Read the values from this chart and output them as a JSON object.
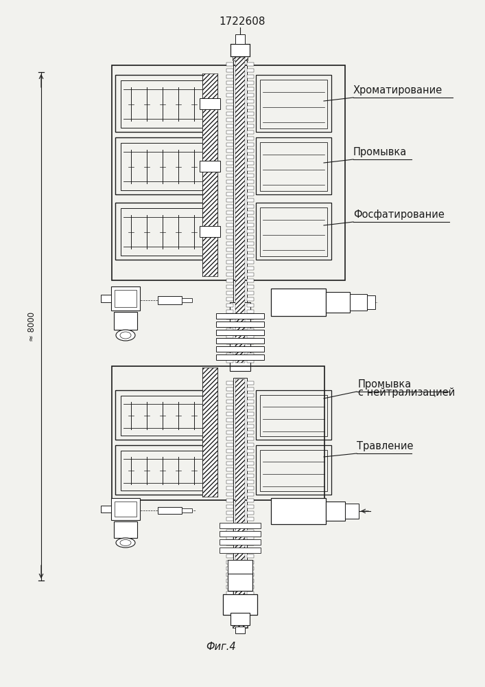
{
  "title": "1722608",
  "fig_label": "Фиг.4",
  "dimension_label": "≈ 8000",
  "labels": {
    "chromatization": "Хроматирование",
    "washing": "Промывка",
    "phosphatization": "Фосфатирование",
    "washing_neutralization_1": "Промывка",
    "washing_neutralization_2": "с нейтрализацией",
    "etching": "Травление"
  },
  "bg_color": "#f2f2ee",
  "line_color": "#1a1a1a"
}
